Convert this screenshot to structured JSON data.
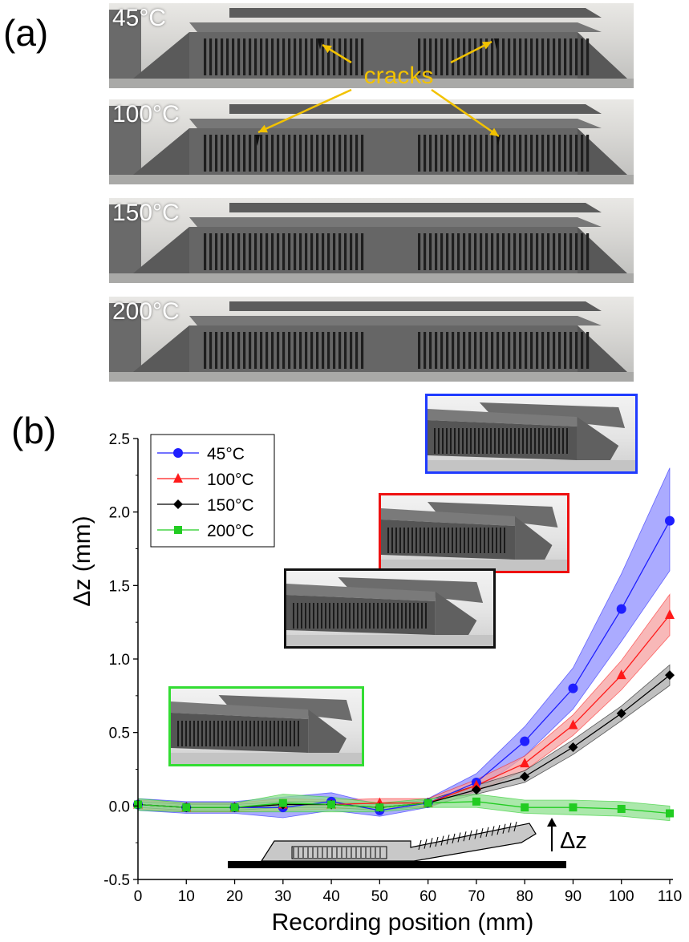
{
  "panel_a": {
    "label": "(a)",
    "photos": [
      {
        "temp": "45°C",
        "annotation": "cracks"
      },
      {
        "temp": "100°C"
      },
      {
        "temp": "150°C"
      },
      {
        "temp": "200°C"
      }
    ],
    "crack_arrow_color": "#f2c200"
  },
  "panel_b": {
    "label": "(b)",
    "insets": [
      {
        "series": "45°C",
        "border": "#1f3bff"
      },
      {
        "series": "100°C",
        "border": "#ee1111"
      },
      {
        "series": "150°C",
        "border": "#111111"
      },
      {
        "series": "200°C",
        "border": "#33dd33"
      }
    ],
    "schematic_label": "Δz"
  },
  "chart_data": {
    "type": "line",
    "xlabel": "Recording position (mm)",
    "ylabel": "Δz (mm)",
    "xlim": [
      0,
      110
    ],
    "ylim": [
      -0.5,
      2.5
    ],
    "xticks": [
      0,
      10,
      20,
      30,
      40,
      50,
      60,
      70,
      80,
      90,
      100,
      110
    ],
    "yticks": [
      -0.5,
      0.0,
      0.5,
      1.0,
      1.5,
      2.0,
      2.5
    ],
    "legend_position": "top-left",
    "grid": false,
    "x": [
      0,
      10,
      20,
      30,
      40,
      50,
      60,
      70,
      80,
      90,
      100,
      110
    ],
    "series": [
      {
        "name": "45°C",
        "marker": "circle",
        "color": "#1f1fff",
        "band": "#8f8fff",
        "values": [
          0.01,
          -0.01,
          -0.01,
          -0.01,
          0.03,
          -0.03,
          0.02,
          0.16,
          0.44,
          0.8,
          1.34,
          1.94
        ],
        "lower": [
          -0.03,
          -0.05,
          -0.05,
          -0.08,
          -0.03,
          -0.07,
          -0.01,
          0.1,
          0.34,
          0.66,
          1.12,
          1.6
        ],
        "upper": [
          0.05,
          0.03,
          0.03,
          0.06,
          0.09,
          0.01,
          0.05,
          0.22,
          0.54,
          0.94,
          1.58,
          2.3
        ]
      },
      {
        "name": "100°C",
        "marker": "triangle",
        "color": "#ff1a1a",
        "band": "#f5a0a0",
        "values": [
          0.01,
          -0.01,
          -0.01,
          0.01,
          0.01,
          0.02,
          0.02,
          0.14,
          0.29,
          0.55,
          0.89,
          1.3
        ],
        "lower": [
          -0.02,
          -0.04,
          -0.04,
          -0.03,
          -0.02,
          -0.01,
          -0.01,
          0.1,
          0.24,
          0.48,
          0.79,
          1.16
        ],
        "upper": [
          0.04,
          0.02,
          0.02,
          0.05,
          0.04,
          0.05,
          0.05,
          0.18,
          0.34,
          0.62,
          0.99,
          1.44
        ]
      },
      {
        "name": "150°C",
        "marker": "diamond",
        "color": "#000000",
        "band": "#aaaaaa",
        "values": [
          0.01,
          -0.01,
          -0.01,
          0.01,
          0.01,
          -0.01,
          0.02,
          0.11,
          0.2,
          0.4,
          0.63,
          0.89
        ],
        "lower": [
          -0.01,
          -0.03,
          -0.03,
          -0.01,
          -0.01,
          -0.03,
          0.0,
          0.08,
          0.16,
          0.35,
          0.58,
          0.82
        ],
        "upper": [
          0.03,
          0.01,
          0.01,
          0.03,
          0.03,
          0.01,
          0.04,
          0.14,
          0.24,
          0.45,
          0.68,
          0.96
        ]
      },
      {
        "name": "200°C",
        "marker": "square",
        "color": "#22cc22",
        "band": "#8fe08f",
        "values": [
          0.01,
          -0.01,
          -0.01,
          0.02,
          0.01,
          -0.01,
          0.02,
          0.03,
          -0.01,
          -0.01,
          -0.02,
          -0.05
        ],
        "lower": [
          -0.03,
          -0.04,
          -0.04,
          -0.04,
          -0.04,
          -0.04,
          -0.01,
          -0.01,
          -0.05,
          -0.06,
          -0.07,
          -0.1
        ],
        "upper": [
          0.05,
          0.02,
          0.02,
          0.08,
          0.06,
          0.02,
          0.05,
          0.08,
          0.04,
          0.04,
          0.03,
          0.0
        ]
      }
    ]
  }
}
